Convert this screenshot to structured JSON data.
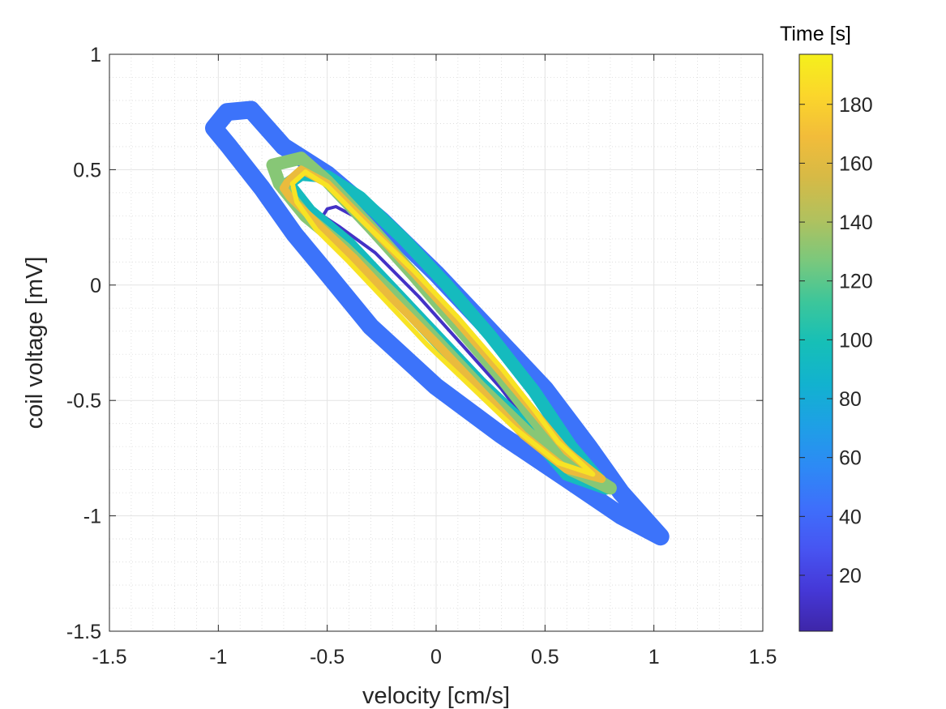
{
  "chart_data": {
    "type": "scatter",
    "title": "",
    "xlabel": "velocity [cm/s]",
    "ylabel": "coil voltage [mV]",
    "xlim": [
      -1.5,
      1.5
    ],
    "ylim": [
      -1.5,
      1
    ],
    "xticks": [
      -1.5,
      -1,
      -0.5,
      0,
      0.5,
      1,
      1.5
    ],
    "yticks": [
      -1.5,
      -1,
      -0.5,
      0,
      0.5,
      1
    ],
    "xtick_labels": [
      "-1.5",
      "-1",
      "-0.5",
      "0",
      "0.5",
      "1",
      "1.5"
    ],
    "ytick_labels": [
      "-1.5",
      "-1",
      "-0.5",
      "0",
      "0.5",
      "1"
    ],
    "grid": true,
    "minor_grid": true,
    "colorbar": {
      "title": "Time [s]",
      "range": [
        1,
        197
      ],
      "ticks": [
        20,
        40,
        60,
        80,
        100,
        120,
        140,
        160,
        180
      ],
      "tick_labels": [
        "20",
        "40",
        "60",
        "80",
        "100",
        "120",
        "140",
        "160",
        "180"
      ],
      "colormap": [
        "#3e26a8",
        "#4538d7",
        "#4755f2",
        "#3e6ffb",
        "#2d8af5",
        "#1ea0e5",
        "#12b2cf",
        "#16bfb7",
        "#3dc69a",
        "#7bc87c",
        "#b1c15e",
        "#d6ba46",
        "#f2bc3a",
        "#fbd62b",
        "#f5f01c"
      ]
    },
    "series": [
      {
        "time": 10,
        "x": [
          -0.52,
          -0.5,
          -0.46,
          -0.38,
          -0.2,
          0.0,
          0.2,
          0.35,
          0.48,
          0.42,
          0.3,
          0.12,
          -0.08,
          -0.28,
          -0.44,
          -0.52
        ],
        "y": [
          0.3,
          0.33,
          0.34,
          0.3,
          0.12,
          -0.08,
          -0.28,
          -0.46,
          -0.62,
          -0.6,
          -0.45,
          -0.26,
          -0.05,
          0.14,
          0.25,
          0.3
        ]
      },
      {
        "time": 45,
        "x": [
          -1.02,
          -0.96,
          -0.85,
          -0.7,
          -0.5,
          -0.25,
          0.0,
          0.25,
          0.5,
          0.7,
          0.85,
          1.03,
          0.85,
          0.6,
          0.3,
          0.0,
          -0.3,
          -0.5,
          -0.65,
          -0.8,
          -0.95,
          -1.02
        ],
        "y": [
          0.68,
          0.75,
          0.76,
          0.6,
          0.48,
          0.28,
          0.05,
          -0.2,
          -0.45,
          -0.7,
          -0.9,
          -1.09,
          -1.0,
          -0.84,
          -0.65,
          -0.44,
          -0.18,
          0.05,
          0.22,
          0.42,
          0.6,
          0.68
        ]
      },
      {
        "time": 95,
        "x": [
          -0.62,
          -0.5,
          -0.35,
          -0.15,
          0.05,
          0.25,
          0.45,
          0.62,
          0.78,
          0.6,
          0.4,
          0.2,
          0.0,
          -0.2,
          -0.4,
          -0.58,
          -0.68,
          -0.62
        ],
        "y": [
          0.48,
          0.47,
          0.38,
          0.2,
          0.0,
          -0.22,
          -0.46,
          -0.7,
          -0.88,
          -0.82,
          -0.6,
          -0.42,
          -0.22,
          -0.02,
          0.18,
          0.32,
          0.44,
          0.48
        ]
      },
      {
        "time": 130,
        "x": [
          -0.75,
          -0.62,
          -0.5,
          -0.3,
          -0.1,
          0.1,
          0.3,
          0.5,
          0.7,
          0.8,
          0.62,
          0.42,
          0.2,
          0.0,
          -0.2,
          -0.42,
          -0.6,
          -0.72,
          -0.75
        ],
        "y": [
          0.52,
          0.55,
          0.45,
          0.25,
          0.04,
          -0.18,
          -0.4,
          -0.64,
          -0.82,
          -0.88,
          -0.8,
          -0.64,
          -0.44,
          -0.24,
          -0.04,
          0.16,
          0.3,
          0.44,
          0.52
        ]
      },
      {
        "time": 165,
        "x": [
          -0.68,
          -0.62,
          -0.5,
          -0.3,
          -0.1,
          0.1,
          0.3,
          0.46,
          0.6,
          0.76,
          0.6,
          0.4,
          0.2,
          0.0,
          -0.2,
          -0.38,
          -0.55,
          -0.67,
          -0.7,
          -0.68
        ],
        "y": [
          0.45,
          0.5,
          0.44,
          0.25,
          0.05,
          -0.16,
          -0.38,
          -0.56,
          -0.72,
          -0.84,
          -0.8,
          -0.65,
          -0.45,
          -0.25,
          -0.06,
          0.12,
          0.27,
          0.38,
          0.42,
          0.45
        ]
      },
      {
        "time": 190,
        "x": [
          -0.66,
          -0.6,
          -0.5,
          -0.32,
          -0.1,
          0.1,
          0.3,
          0.45,
          0.56,
          0.72,
          0.56,
          0.36,
          0.16,
          -0.04,
          -0.22,
          -0.4,
          -0.55,
          -0.64,
          -0.66
        ],
        "y": [
          0.44,
          0.49,
          0.43,
          0.26,
          0.06,
          -0.14,
          -0.36,
          -0.54,
          -0.68,
          -0.82,
          -0.77,
          -0.62,
          -0.44,
          -0.26,
          -0.08,
          0.1,
          0.24,
          0.36,
          0.44
        ]
      }
    ]
  }
}
